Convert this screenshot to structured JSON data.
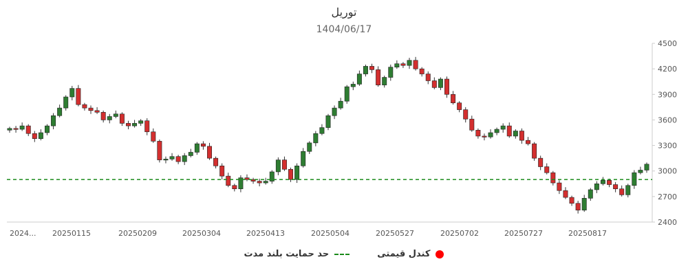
{
  "chart_data": {
    "type": "candlestick",
    "title": "توریل",
    "subtitle": "1404/06/17",
    "ylim": [
      2400,
      4500
    ],
    "yticks": [
      2400,
      2700,
      3000,
      3300,
      3600,
      3900,
      4200,
      4500
    ],
    "x_tick_labels": [
      "2024...",
      "20250115",
      "20250209",
      "20250304",
      "20250413",
      "20250504",
      "20250527",
      "20250702",
      "20250727",
      "20250817"
    ],
    "support_level": 2900,
    "colors": {
      "up": "#2e7d32",
      "down": "#d32f2f",
      "support": "#1a8a1a",
      "price_marker": "#ff0000"
    },
    "legend": [
      {
        "label": "حد حمایت بلند مدت",
        "marker": "dashed-line",
        "color": "#1a8a1a"
      },
      {
        "label": "کندل قیمتی",
        "marker": "circle",
        "color": "#ff0000"
      }
    ],
    "closes": [
      3500,
      3490,
      3530,
      3440,
      3380,
      3450,
      3530,
      3650,
      3740,
      3870,
      3970,
      3780,
      3740,
      3710,
      3690,
      3600,
      3640,
      3670,
      3560,
      3530,
      3560,
      3590,
      3460,
      3350,
      3130,
      3140,
      3170,
      3110,
      3180,
      3220,
      3320,
      3290,
      3150,
      3060,
      2940,
      2830,
      2790,
      2920,
      2900,
      2880,
      2860,
      2880,
      2990,
      3130,
      3020,
      2900,
      3060,
      3230,
      3330,
      3440,
      3510,
      3650,
      3740,
      3820,
      3990,
      4020,
      4140,
      4230,
      4190,
      4010,
      4100,
      4220,
      4260,
      4240,
      4300,
      4200,
      4140,
      4060,
      3980,
      4080,
      3900,
      3800,
      3720,
      3610,
      3480,
      3410,
      3400,
      3450,
      3490,
      3530,
      3410,
      3470,
      3360,
      3320,
      3150,
      3050,
      2980,
      2860,
      2770,
      2690,
      2620,
      2540,
      2680,
      2780,
      2850,
      2890,
      2840,
      2790,
      2720,
      2830,
      2980,
      3010,
      3080
    ]
  },
  "legend": [
    {
      "label": "حد حمایت بلند مدت"
    },
    {
      "label": "کندل قیمتی"
    }
  ]
}
